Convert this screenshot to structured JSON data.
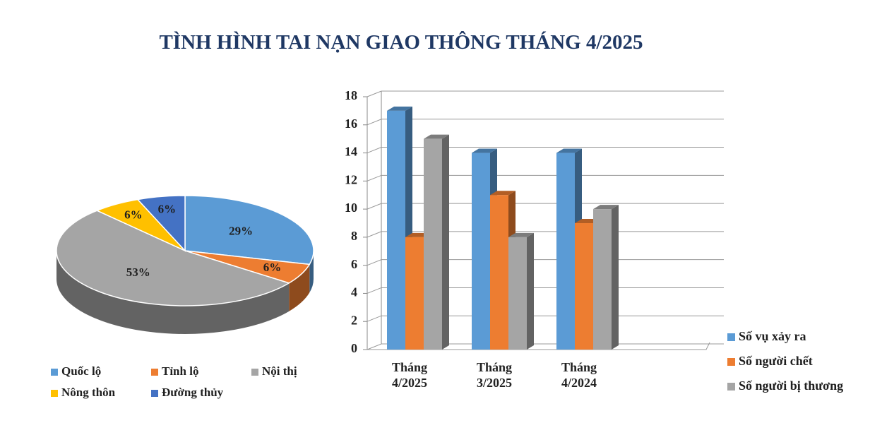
{
  "title": "TÌNH HÌNH TAI NẠN GIAO THÔNG THÁNG 4/2025",
  "chart_data": [
    {
      "type": "pie",
      "categories": [
        "Quốc lộ",
        "Tỉnh lộ",
        "Nội thị",
        "Nông thôn",
        "Đường thủy"
      ],
      "values": [
        29,
        6,
        53,
        6,
        6
      ],
      "value_labels": [
        "29%",
        "6%",
        "53%",
        "6%",
        "6%"
      ],
      "colors": [
        "#5b9bd5",
        "#ed7d31",
        "#a5a5a5",
        "#ffc000",
        "#4472c4"
      ]
    },
    {
      "type": "bar",
      "categories": [
        "Tháng 4/2025",
        "Tháng 3/2025",
        "Tháng 4/2024"
      ],
      "series": [
        {
          "name": "Số vụ xảy ra",
          "color": "#5b9bd5",
          "values": [
            17,
            14,
            14
          ]
        },
        {
          "name": "Số người chết",
          "color": "#ed7d31",
          "values": [
            8,
            11,
            9
          ]
        },
        {
          "name": "Số người bị thương",
          "color": "#a5a5a5",
          "values": [
            15,
            8,
            10
          ]
        }
      ],
      "ylim": [
        0,
        18
      ],
      "yticks": [
        0,
        2,
        4,
        6,
        8,
        10,
        12,
        14,
        16,
        18
      ],
      "grid": true
    }
  ]
}
